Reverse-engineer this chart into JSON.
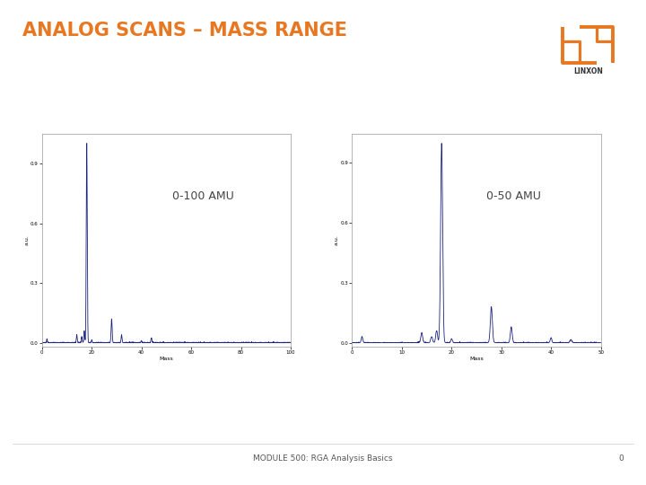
{
  "title": "ANALOG SCANS – MASS RANGE",
  "title_color": "#E87722",
  "title_fontsize": 15,
  "bg_color": "#ffffff",
  "label_0_100": "0-100 AMU",
  "label_0_50": "0-50 AMU",
  "footer_text": "MODULE 500: RGA Analysis Basics",
  "footer_number": "0",
  "footer_bar_color": "#E87722",
  "footer_text_color": "#555555",
  "linxon_color": "#E87722",
  "plot_line_color": "#1a237e",
  "plot_bg_color": "#ffffff",
  "plot_border_color": "#999999",
  "xlabel_text": "Mass",
  "ylabel_text": "a.u.",
  "plot1_xlim": [
    0,
    100
  ],
  "plot1_xticks": [
    0,
    20,
    40,
    60,
    80,
    100
  ],
  "plot2_xlim": [
    0,
    50
  ],
  "plot2_xticks": [
    0,
    10,
    20,
    30,
    40,
    50
  ]
}
